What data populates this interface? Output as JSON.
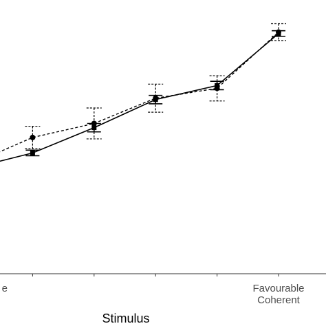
{
  "chart_data": {
    "type": "line",
    "title": "",
    "xlabel": "Stimulus",
    "ylabel": "",
    "x_positions": [
      0,
      1,
      2,
      3,
      4,
      5
    ],
    "x_tick_labels_visible": [
      {
        "x": 0,
        "lines": [
          "e"
        ]
      },
      {
        "x": 5,
        "lines": [
          "Favourable",
          "Coherent"
        ]
      }
    ],
    "series": [
      {
        "line_style": "solid",
        "y": [
          2.5,
          3.6,
          5.4,
          7.4,
          8.4,
          12.1
        ],
        "error": [
          0.0,
          0.2,
          0.3,
          0.3,
          0.3,
          0.2
        ]
      },
      {
        "line_style": "dashed",
        "y": [
          2.8,
          4.7,
          5.7,
          7.5,
          8.2,
          12.2
        ],
        "error": [
          0.0,
          0.8,
          1.1,
          1.0,
          0.9,
          0.6
        ]
      }
    ],
    "ylim": [
      -5,
      14
    ],
    "grid": false,
    "legend": "none"
  }
}
